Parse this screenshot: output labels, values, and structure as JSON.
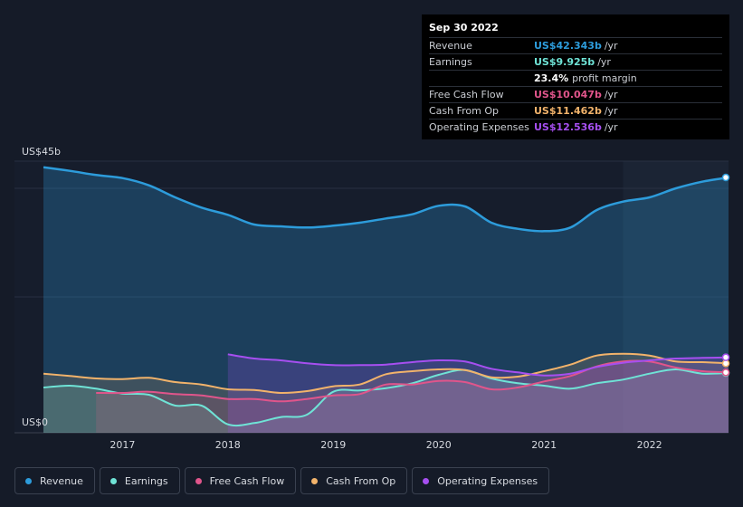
{
  "tooltip": {
    "date": "Sep 30 2022",
    "rows": [
      {
        "label": "Revenue",
        "value": "US$42.343b",
        "unit": "/yr",
        "color": "#2d9cdb"
      },
      {
        "label": "Earnings",
        "value": "US$9.925b",
        "unit": "/yr",
        "color": "#6fe3d6"
      },
      {
        "label": "",
        "value": "23.4%",
        "note": "profit margin",
        "color": "#ffffff"
      },
      {
        "label": "Free Cash Flow",
        "value": "US$10.047b",
        "unit": "/yr",
        "color": "#e0558b"
      },
      {
        "label": "Cash From Op",
        "value": "US$11.462b",
        "unit": "/yr",
        "color": "#f2b36b"
      },
      {
        "label": "Operating Expenses",
        "value": "US$12.536b",
        "unit": "/yr",
        "color": "#a64ff0"
      }
    ]
  },
  "legend": [
    {
      "label": "Revenue",
      "color": "#2d9cdb"
    },
    {
      "label": "Earnings",
      "color": "#6fe3d6"
    },
    {
      "label": "Free Cash Flow",
      "color": "#e0558b"
    },
    {
      "label": "Cash From Op",
      "color": "#f2b36b"
    },
    {
      "label": "Operating Expenses",
      "color": "#a64ff0"
    }
  ],
  "chart_data": {
    "type": "area",
    "xlim": [
      2016.25,
      2022.75
    ],
    "ylim": [
      0,
      45
    ],
    "y_top_label": "US$45b",
    "y_bottom_label": "US$0",
    "x_ticks": [
      2017,
      2018,
      2019,
      2020,
      2021,
      2022
    ],
    "x_tick_labels": [
      "2017",
      "2018",
      "2019",
      "2020",
      "2021",
      "2022"
    ],
    "highlight_start": 2021.75,
    "series": [
      {
        "name": "Revenue",
        "color": "#2d9cdb",
        "x": [
          2016.25,
          2016.5,
          2016.75,
          2017.0,
          2017.25,
          2017.5,
          2017.75,
          2018.0,
          2018.25,
          2018.5,
          2018.75,
          2019.0,
          2019.25,
          2019.5,
          2019.75,
          2020.0,
          2020.25,
          2020.5,
          2020.75,
          2021.0,
          2021.25,
          2021.5,
          2021.75,
          2022.0,
          2022.25,
          2022.5,
          2022.75
        ],
        "values": [
          44.0,
          43.4,
          42.7,
          42.2,
          41.0,
          39.0,
          37.3,
          36.1,
          34.5,
          34.2,
          34.0,
          34.3,
          34.8,
          35.5,
          36.2,
          37.6,
          37.5,
          34.8,
          33.8,
          33.4,
          34.0,
          36.9,
          38.3,
          39.0,
          40.5,
          41.6,
          42.3
        ]
      },
      {
        "name": "Earnings",
        "color": "#6fe3d6",
        "x": [
          2016.25,
          2016.5,
          2016.75,
          2017.0,
          2017.25,
          2017.5,
          2017.75,
          2018.0,
          2018.25,
          2018.5,
          2018.75,
          2019.0,
          2019.25,
          2019.5,
          2019.75,
          2020.0,
          2020.25,
          2020.5,
          2020.75,
          2021.0,
          2021.25,
          2021.5,
          2021.75,
          2022.0,
          2022.25,
          2022.5,
          2022.75
        ],
        "values": [
          7.5,
          7.8,
          7.3,
          6.5,
          6.3,
          4.5,
          4.5,
          1.4,
          1.6,
          2.6,
          3.0,
          6.8,
          7.0,
          7.4,
          8.2,
          9.6,
          10.4,
          9.0,
          8.2,
          7.8,
          7.3,
          8.2,
          8.8,
          9.8,
          10.5,
          9.8,
          9.9
        ]
      },
      {
        "name": "Free Cash Flow",
        "color": "#e0558b",
        "x": [
          2016.75,
          2017.0,
          2017.25,
          2017.5,
          2017.75,
          2018.0,
          2018.25,
          2018.5,
          2018.75,
          2019.0,
          2019.25,
          2019.5,
          2019.75,
          2020.0,
          2020.25,
          2020.5,
          2020.75,
          2021.0,
          2021.25,
          2021.5,
          2021.75,
          2022.0,
          2022.25,
          2022.5,
          2022.75
        ],
        "values": [
          6.6,
          6.6,
          6.8,
          6.4,
          6.2,
          5.6,
          5.6,
          5.2,
          5.6,
          6.2,
          6.4,
          8.0,
          8.0,
          8.6,
          8.4,
          7.2,
          7.5,
          8.5,
          9.4,
          11.0,
          11.8,
          11.8,
          10.8,
          10.2,
          10.0
        ]
      },
      {
        "name": "Cash From Op",
        "color": "#f2b36b",
        "x": [
          2016.25,
          2016.5,
          2016.75,
          2017.0,
          2017.25,
          2017.5,
          2017.75,
          2018.0,
          2018.25,
          2018.5,
          2018.75,
          2019.0,
          2019.25,
          2019.5,
          2019.75,
          2020.0,
          2020.25,
          2020.5,
          2020.75,
          2021.0,
          2021.25,
          2021.5,
          2021.75,
          2022.0,
          2022.25,
          2022.5,
          2022.75
        ],
        "values": [
          9.8,
          9.4,
          9.0,
          8.9,
          9.1,
          8.4,
          8.0,
          7.2,
          7.1,
          6.6,
          6.9,
          7.7,
          8.0,
          9.7,
          10.2,
          10.5,
          10.4,
          9.2,
          9.3,
          10.2,
          11.3,
          12.8,
          13.1,
          12.8,
          11.8,
          11.7,
          11.5
        ]
      },
      {
        "name": "Operating Expenses",
        "color": "#a64ff0",
        "x": [
          2018.0,
          2018.25,
          2018.5,
          2018.75,
          2019.0,
          2019.25,
          2019.5,
          2019.75,
          2020.0,
          2020.25,
          2020.5,
          2020.75,
          2021.0,
          2021.25,
          2021.5,
          2021.75,
          2022.0,
          2022.25,
          2022.5,
          2022.75
        ],
        "values": [
          13.0,
          12.3,
          12.0,
          11.5,
          11.2,
          11.2,
          11.3,
          11.7,
          12.0,
          11.8,
          10.6,
          10.0,
          9.5,
          9.8,
          10.9,
          11.6,
          12.0,
          12.3,
          12.4,
          12.5
        ]
      }
    ]
  }
}
